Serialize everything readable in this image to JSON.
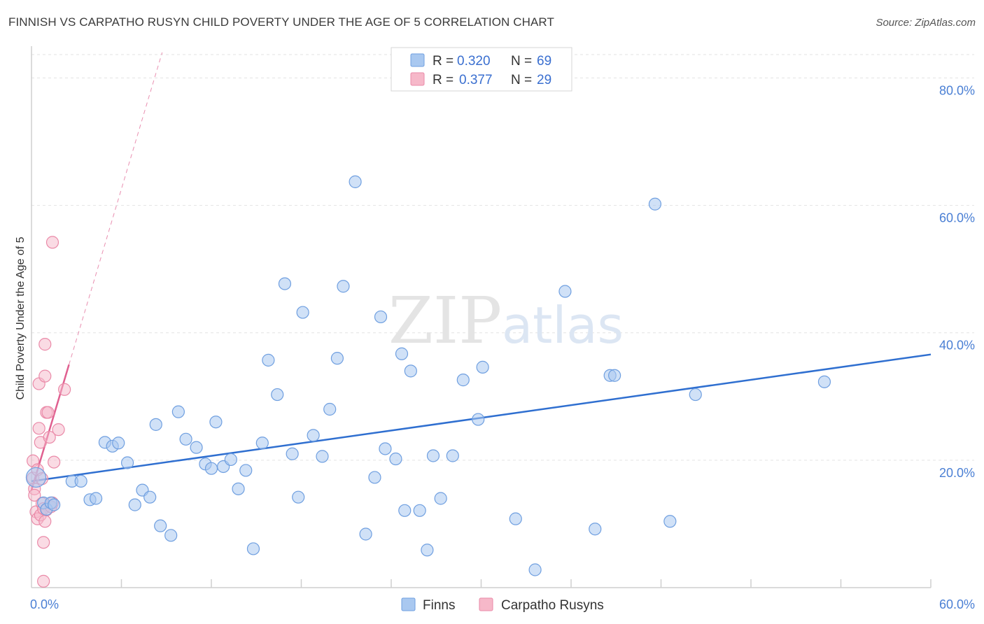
{
  "header": {
    "title": "FINNISH VS CARPATHO RUSYN CHILD POVERTY UNDER THE AGE OF 5 CORRELATION CHART",
    "source": "Source: ZipAtlas.com"
  },
  "watermark": {
    "zip": "ZIP",
    "atlas": "atlas"
  },
  "legend": {
    "r_label": "R =",
    "n_label": "N =",
    "finns_r": "0.320",
    "finns_n": "69",
    "rusyn_r": "0.377",
    "rusyn_n": "29"
  },
  "bottom_legend": {
    "finns": "Finns",
    "rusyns": "Carpatho Rusyns"
  },
  "colors": {
    "finns_fill": "#a9c8f0",
    "finns_stroke": "#6f9fe0",
    "finns_line": "#2f6fd0",
    "rusyn_fill": "#f6b8c9",
    "rusyn_stroke": "#ea8aa8",
    "rusyn_line": "#e06090",
    "grid": "#e3e3e3",
    "tick_text": "#4a7fd4"
  },
  "chart_data": {
    "type": "scatter",
    "title": "FINNISH VS CARPATHO RUSYN CHILD POVERTY UNDER THE AGE OF 5 CORRELATION CHART",
    "xlabel": "",
    "ylabel": "Child Poverty Under the Age of 5",
    "xlim": [
      0,
      60
    ],
    "ylim": [
      0,
      84
    ],
    "x_tick_labels": [
      "0.0%",
      "60.0%"
    ],
    "y_ticks": [
      20,
      40,
      60,
      80
    ],
    "y_tick_labels": [
      "20.0%",
      "40.0%",
      "60.0%",
      "80.0%"
    ],
    "grid": true,
    "series": [
      {
        "name": "Finns",
        "R": 0.32,
        "N": 69,
        "trend": {
          "x": [
            0,
            60
          ],
          "y": [
            16.7,
            36.6
          ]
        },
        "points": [
          [
            0.3,
            17.3
          ],
          [
            0.8,
            13.3
          ],
          [
            1.0,
            12.3
          ],
          [
            1.3,
            13.3
          ],
          [
            1.5,
            13.0
          ],
          [
            2.7,
            16.7
          ],
          [
            3.3,
            16.7
          ],
          [
            3.9,
            13.8
          ],
          [
            4.3,
            14.0
          ],
          [
            4.9,
            22.8
          ],
          [
            5.4,
            22.2
          ],
          [
            5.8,
            22.7
          ],
          [
            6.4,
            19.6
          ],
          [
            6.9,
            13.0
          ],
          [
            7.4,
            15.3
          ],
          [
            7.9,
            14.2
          ],
          [
            8.3,
            25.6
          ],
          [
            8.6,
            9.7
          ],
          [
            9.3,
            8.2
          ],
          [
            9.8,
            27.6
          ],
          [
            10.3,
            23.3
          ],
          [
            11.0,
            22.0
          ],
          [
            11.6,
            19.4
          ],
          [
            12.0,
            18.7
          ],
          [
            12.3,
            26.0
          ],
          [
            12.8,
            19.0
          ],
          [
            13.3,
            20.1
          ],
          [
            13.8,
            15.5
          ],
          [
            14.3,
            18.4
          ],
          [
            14.8,
            6.1
          ],
          [
            15.4,
            22.7
          ],
          [
            15.8,
            35.7
          ],
          [
            16.4,
            30.3
          ],
          [
            16.9,
            47.7
          ],
          [
            17.4,
            21.0
          ],
          [
            17.8,
            14.2
          ],
          [
            18.1,
            43.2
          ],
          [
            18.8,
            23.9
          ],
          [
            19.4,
            20.6
          ],
          [
            19.9,
            28.0
          ],
          [
            20.4,
            36.0
          ],
          [
            20.8,
            47.3
          ],
          [
            21.6,
            63.7
          ],
          [
            22.3,
            8.4
          ],
          [
            22.9,
            17.3
          ],
          [
            23.3,
            42.5
          ],
          [
            23.6,
            21.8
          ],
          [
            24.3,
            20.2
          ],
          [
            24.7,
            36.7
          ],
          [
            24.9,
            12.1
          ],
          [
            25.3,
            34.0
          ],
          [
            25.9,
            12.1
          ],
          [
            26.4,
            5.9
          ],
          [
            26.8,
            20.7
          ],
          [
            27.3,
            14.0
          ],
          [
            28.1,
            20.7
          ],
          [
            28.8,
            32.6
          ],
          [
            29.8,
            26.4
          ],
          [
            30.1,
            34.6
          ],
          [
            32.3,
            10.8
          ],
          [
            33.6,
            2.8
          ],
          [
            35.6,
            46.5
          ],
          [
            37.6,
            9.2
          ],
          [
            38.6,
            33.3
          ],
          [
            38.9,
            33.3
          ],
          [
            41.6,
            60.2
          ],
          [
            42.6,
            10.4
          ],
          [
            44.3,
            30.3
          ],
          [
            52.9,
            32.3
          ]
        ]
      },
      {
        "name": "Carpatho Rusyns",
        "R": 0.377,
        "N": 29,
        "trend": {
          "x": [
            0,
            2.5
          ],
          "y": [
            15.3,
            35.0
          ],
          "dashed_extension_to_y": 84
        },
        "points": [
          [
            0.1,
            19.9
          ],
          [
            0.1,
            17.2
          ],
          [
            0.2,
            15.5
          ],
          [
            0.2,
            14.5
          ],
          [
            0.3,
            11.9
          ],
          [
            0.4,
            10.8
          ],
          [
            0.4,
            18.5
          ],
          [
            0.5,
            32.0
          ],
          [
            0.5,
            25.0
          ],
          [
            0.6,
            22.8
          ],
          [
            0.6,
            11.4
          ],
          [
            0.7,
            17.1
          ],
          [
            0.7,
            13.2
          ],
          [
            0.8,
            12.4
          ],
          [
            0.8,
            1.0
          ],
          [
            0.9,
            33.2
          ],
          [
            0.9,
            38.2
          ],
          [
            0.9,
            10.4
          ],
          [
            0.8,
            7.1
          ],
          [
            1.0,
            27.5
          ],
          [
            1.0,
            12.2
          ],
          [
            1.1,
            27.5
          ],
          [
            1.2,
            23.6
          ],
          [
            1.3,
            12.7
          ],
          [
            1.4,
            54.2
          ],
          [
            1.4,
            13.3
          ],
          [
            1.5,
            19.7
          ],
          [
            1.8,
            24.8
          ],
          [
            2.2,
            31.1
          ]
        ]
      }
    ]
  }
}
